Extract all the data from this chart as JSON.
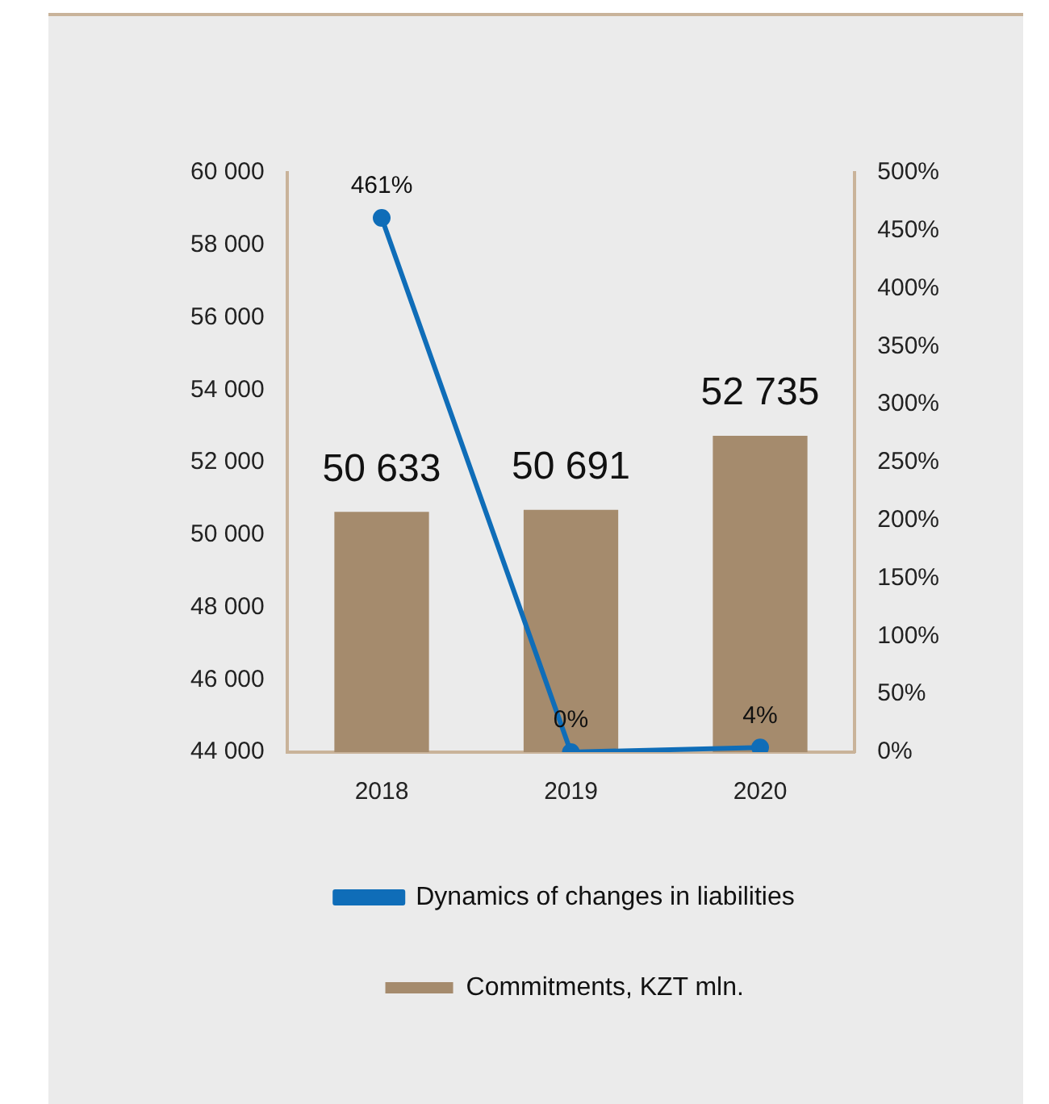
{
  "chart_data": {
    "type": "bar",
    "categories": [
      "2018",
      "2019",
      "2020"
    ],
    "series": [
      {
        "name": "Commitments, KZT mln.",
        "color": "#a58b6d",
        "values": [
          50633,
          50691,
          52735
        ]
      },
      {
        "name": "Dynamics of changes in liabilities",
        "type": "line",
        "axis": "y2",
        "color": "#0f6db8",
        "values": [
          461,
          0,
          4
        ],
        "value_labels": [
          "461%",
          "0%",
          "4%"
        ]
      }
    ],
    "ylim": [
      44000,
      60000
    ],
    "yticks": [
      {
        "value": 44000,
        "label": "44 000"
      },
      {
        "value": 46000,
        "label": "46 000"
      },
      {
        "value": 48000,
        "label": "48 000"
      },
      {
        "value": 50000,
        "label": "50 000"
      },
      {
        "value": 52000,
        "label": "52 000"
      },
      {
        "value": 54000,
        "label": "54 000"
      },
      {
        "value": 56000,
        "label": "56 000"
      },
      {
        "value": 58000,
        "label": "58 000"
      },
      {
        "value": 60000,
        "label": "60 000"
      }
    ],
    "y2lim": [
      0,
      500
    ],
    "y2ticks": [
      {
        "value": 0,
        "label": "0%"
      },
      {
        "value": 50,
        "label": "50%"
      },
      {
        "value": 100,
        "label": "100%"
      },
      {
        "value": 150,
        "label": "150%"
      },
      {
        "value": 200,
        "label": "200%"
      },
      {
        "value": 250,
        "label": "250%"
      },
      {
        "value": 300,
        "label": "300%"
      },
      {
        "value": 350,
        "label": "350%"
      },
      {
        "value": 400,
        "label": "400%"
      },
      {
        "value": 450,
        "label": "450%"
      },
      {
        "value": 500,
        "label": "500%"
      }
    ],
    "value_labels": [
      "50 633",
      "50 691",
      "52 735"
    ],
    "grid": false,
    "legend": "bottom",
    "marker": "circle"
  }
}
